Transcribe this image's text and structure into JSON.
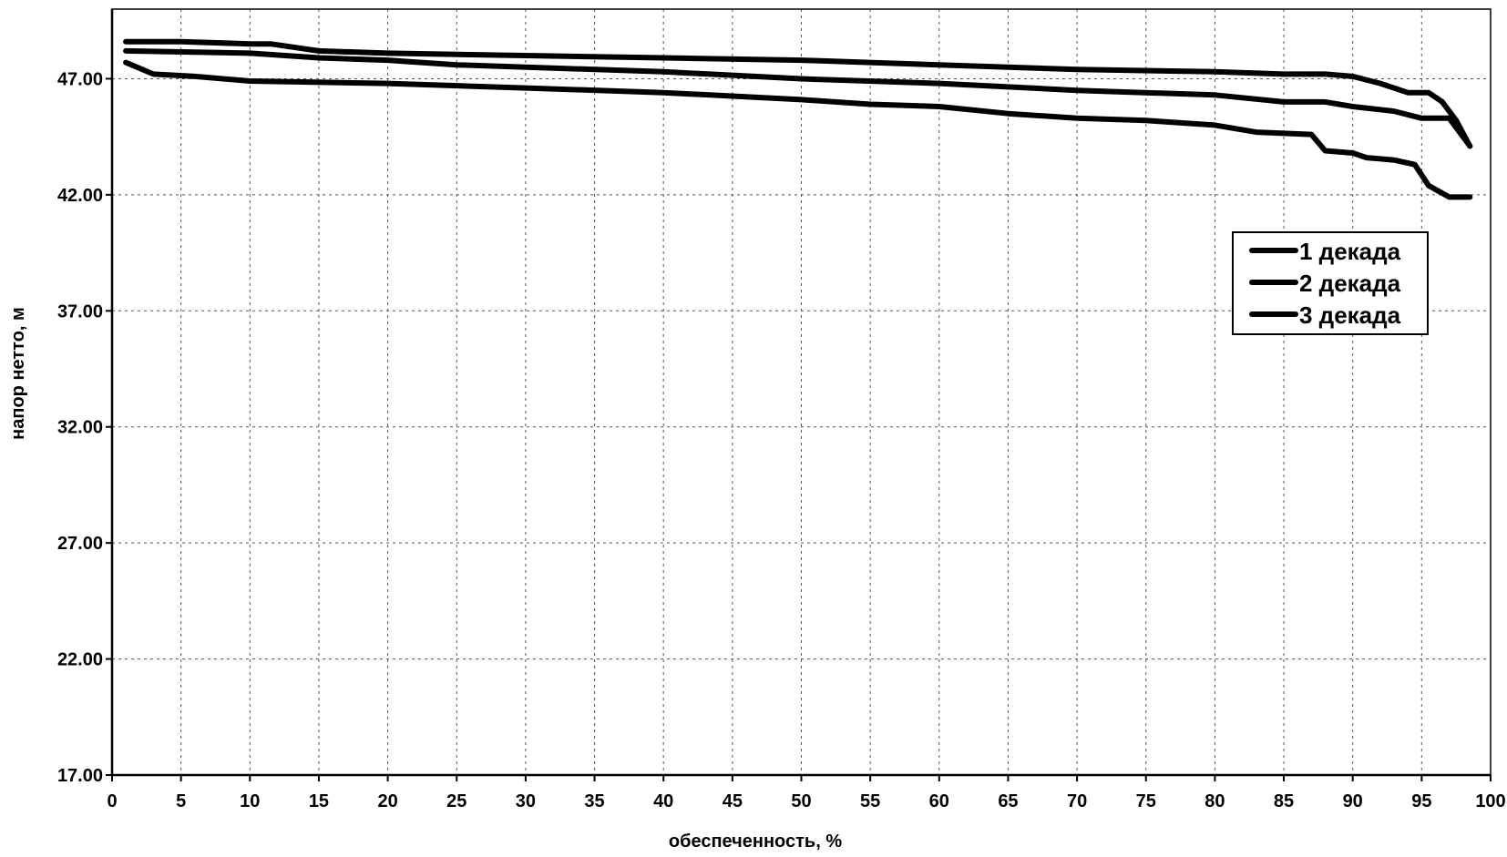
{
  "chart_data": {
    "type": "line",
    "xlabel": "обеспеченность, %",
    "ylabel": "напор нетто, м",
    "xlim": [
      0,
      100
    ],
    "ylim": [
      17,
      50
    ],
    "x_ticks": [
      0,
      5,
      10,
      15,
      20,
      25,
      30,
      35,
      40,
      45,
      50,
      55,
      60,
      65,
      70,
      75,
      80,
      85,
      90,
      95,
      100
    ],
    "y_ticks": [
      17,
      22,
      27,
      32,
      37,
      42,
      47
    ],
    "y_tick_labels": [
      "17.00",
      "22.00",
      "27.00",
      "32.00",
      "37.00",
      "42.00",
      "47.00"
    ],
    "grid": true,
    "legend": {
      "placement": "right"
    },
    "series": [
      {
        "name": "1 декада",
        "x": [
          1,
          5,
          10,
          11.5,
          15,
          20,
          30,
          40,
          50,
          60,
          70,
          80,
          85,
          88,
          90,
          92,
          94,
          95.5,
          96.5,
          97.5,
          98.5
        ],
        "y": [
          48.6,
          48.6,
          48.5,
          48.5,
          48.2,
          48.1,
          48.0,
          47.9,
          47.8,
          47.6,
          47.4,
          47.3,
          47.2,
          47.2,
          47.1,
          46.8,
          46.4,
          46.4,
          46.0,
          45.2,
          44.1
        ]
      },
      {
        "name": "2 декада",
        "x": [
          1,
          10,
          15,
          20,
          25,
          30,
          40,
          50,
          60,
          70,
          80,
          85,
          88,
          90,
          93,
          95,
          97,
          98.5
        ],
        "y": [
          48.2,
          48.1,
          47.9,
          47.8,
          47.6,
          47.5,
          47.3,
          47.0,
          46.8,
          46.5,
          46.3,
          46.0,
          46.0,
          45.8,
          45.6,
          45.3,
          45.3,
          44.1
        ]
      },
      {
        "name": "3 декада",
        "x": [
          1,
          3,
          6,
          10,
          20,
          30,
          40,
          50,
          55,
          60,
          65,
          70,
          75,
          80,
          83,
          87,
          88,
          90,
          91,
          93,
          94.5,
          95.5,
          97,
          98.5
        ],
        "y": [
          47.7,
          47.2,
          47.1,
          46.9,
          46.8,
          46.6,
          46.4,
          46.1,
          45.9,
          45.8,
          45.5,
          45.3,
          45.2,
          45.0,
          44.7,
          44.6,
          43.9,
          43.8,
          43.6,
          43.5,
          43.3,
          42.4,
          41.9,
          41.9
        ]
      }
    ]
  }
}
